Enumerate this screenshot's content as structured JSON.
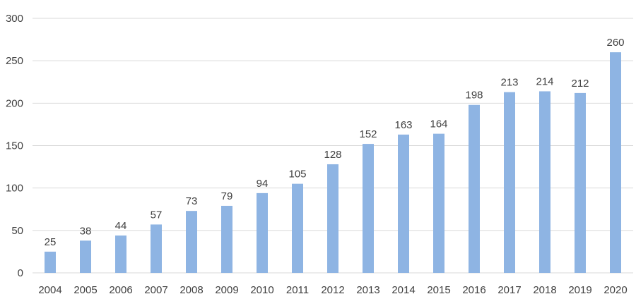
{
  "chart_data": {
    "type": "bar",
    "title": "",
    "xlabel": "",
    "ylabel": "",
    "categories": [
      "2004",
      "2005",
      "2006",
      "2007",
      "2008",
      "2009",
      "2010",
      "2011",
      "2012",
      "2013",
      "2014",
      "2015",
      "2016",
      "2017",
      "2018",
      "2019",
      "2020"
    ],
    "values": [
      25,
      38,
      44,
      57,
      73,
      79,
      94,
      105,
      128,
      152,
      163,
      164,
      198,
      213,
      214,
      212,
      260
    ],
    "ylim": [
      0,
      300
    ],
    "yticks": [
      0,
      50,
      100,
      150,
      200,
      250,
      300
    ],
    "grid": true,
    "legend": "none",
    "data_labels": true,
    "bar_color": "#8eb4e3",
    "text_color": "#404040",
    "grid_color": "#d9d9d9"
  }
}
